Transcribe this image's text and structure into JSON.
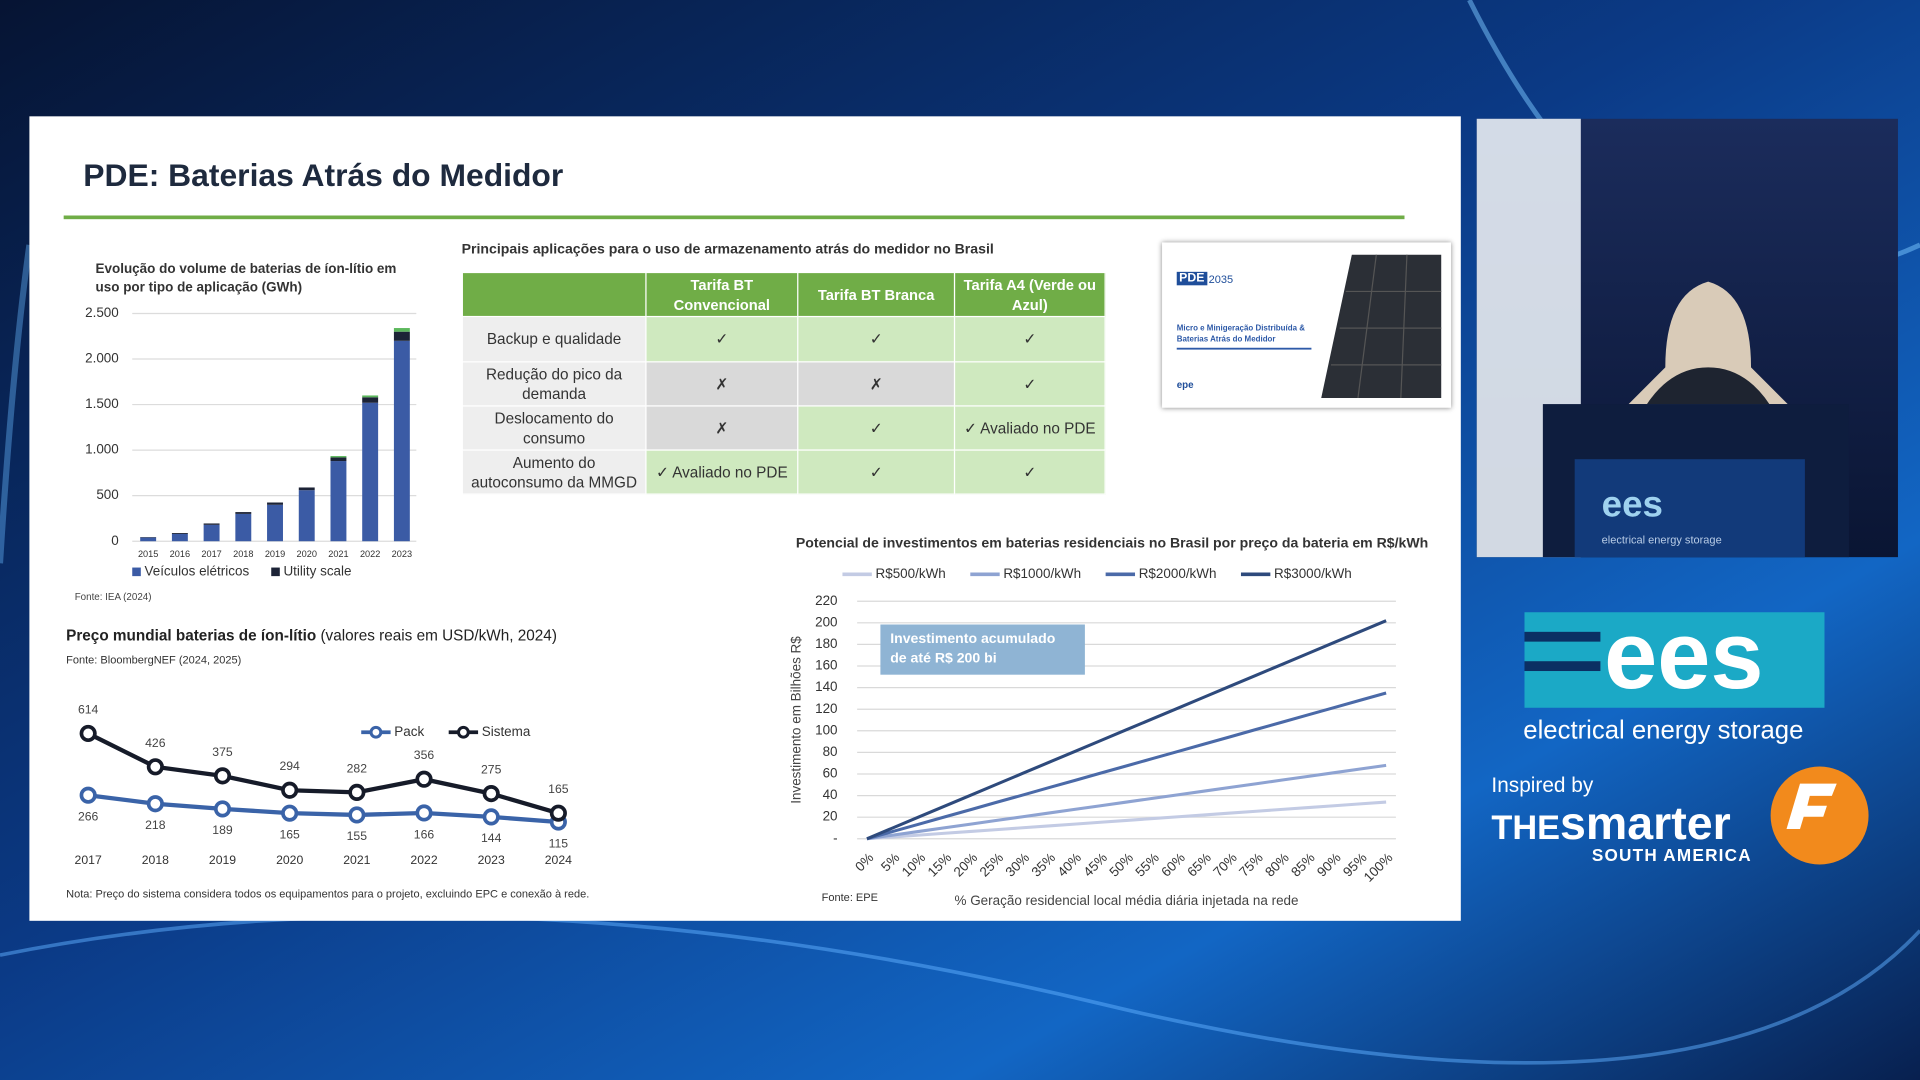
{
  "slide": {
    "title": "PDE: Baterias Atrás do Medidor",
    "note": "Nota: Preço do sistema considera todos os equipamentos para o projeto, excluindo EPC e conexão à rede."
  },
  "table": {
    "title": "Principais aplicações para o uso de armazenamento atrás do medidor no Brasil",
    "header": [
      "Tarifa BT Convencional",
      "Tarifa BT Branca",
      "Tarifa A4 (Verde ou Azul)"
    ],
    "rows": [
      {
        "label": "Backup e qualidade",
        "cells": [
          "✓",
          "✓",
          "✓"
        ]
      },
      {
        "label": "Redução do pico da demanda",
        "cells": [
          "✗",
          "✗",
          "✓"
        ]
      },
      {
        "label": "Deslocamento do consumo",
        "cells": [
          "✗",
          "✓",
          "✓ Avaliado no PDE"
        ]
      },
      {
        "label": "Aumento do autoconsumo da MMGD",
        "cells": [
          "✓ Avaliado no PDE",
          "✓",
          "✓"
        ]
      }
    ]
  },
  "report": {
    "badge": "PDE",
    "year": "2035",
    "title": "Micro e Minigeração Distribuída & Baterias Atrás do Medidor",
    "logo": "epe"
  },
  "branding": {
    "ees": "ees",
    "tagline": "electrical energy storage",
    "inspired": "Inspired by",
    "the": "THE",
    "smarter": "smarter",
    "region": "SOUTH AMERICA"
  },
  "chart_data": [
    {
      "type": "bar",
      "stacked": true,
      "grid": true,
      "legend": "bottom",
      "title": "Evolução do volume de baterias de íon-lítio em uso por tipo de aplicação (GWh)",
      "source": "Fonte: IEA (2024)",
      "categories": [
        "2015",
        "2016",
        "2017",
        "2018",
        "2019",
        "2020",
        "2021",
        "2022",
        "2023"
      ],
      "series": [
        {
          "name": "Veículos elétricos",
          "color": "#3b5ba5",
          "values": [
            40,
            80,
            180,
            300,
            400,
            560,
            880,
            1520,
            2200
          ]
        },
        {
          "name": "Utility scale",
          "color": "#1c2336",
          "values": [
            5,
            10,
            15,
            20,
            25,
            30,
            40,
            60,
            100
          ]
        },
        {
          "color": "#5cb85c",
          "values": [
            0,
            0,
            0,
            0,
            0,
            0,
            15,
            20,
            40
          ]
        }
      ],
      "ylim": [
        0,
        2500
      ],
      "yticks": [
        0,
        500,
        {
          "value": 1000,
          "label": "1.000"
        },
        {
          "value": 1500,
          "label": "1.500"
        },
        {
          "value": 2000,
          "label": "2.000"
        },
        {
          "value": 2500,
          "label": "2.500"
        }
      ]
    },
    {
      "type": "line",
      "markers": true,
      "data_labels": true,
      "legend": "upper right",
      "title": "Preço mundial baterias de íon-lítio",
      "title_note": "(valores reais em USD/kWh, 2024)",
      "subtitle": "Fonte: BloombergNEF (2024, 2025)",
      "categories": [
        "2017",
        "2018",
        "2019",
        "2020",
        "2021",
        "2022",
        "2023",
        "2024"
      ],
      "series": [
        {
          "name": "Pack",
          "color": "#3a63a8",
          "label_position": "below",
          "values": [
            266,
            218,
            189,
            165,
            155,
            166,
            144,
            115
          ]
        },
        {
          "name": "Sistema",
          "color": "#161b29",
          "label_position": "above",
          "values": [
            614,
            426,
            375,
            294,
            282,
            356,
            275,
            165
          ]
        }
      ],
      "ylim": [
        0,
        700
      ]
    },
    {
      "type": "line",
      "grid": true,
      "legend": "top",
      "title": "Potencial de investimentos em baterias residenciais no Brasil por preço da bateria em R$/kWh",
      "y_label": "Investimento em Bilhões R$",
      "x_label": "% Geração residencial local média diária injetada na rede",
      "source": "Fonte: EPE",
      "annotation": "Investimento acumulado de até R$ 200 bi",
      "categories": [
        "0%",
        "5%",
        "10%",
        "15%",
        "20%",
        "25%",
        "30%",
        "35%",
        "40%",
        "45%",
        "50%",
        "55%",
        "60%",
        "65%",
        "70%",
        "75%",
        "80%",
        "85%",
        "90%",
        "95%",
        "100%"
      ],
      "series": [
        {
          "name": "R$500/kWh",
          "color": "#c3cbe4",
          "values": [
            0,
            1.7,
            3.4,
            5.1,
            6.8,
            8.5,
            10.2,
            11.9,
            13.6,
            15.3,
            17,
            18.7,
            20.4,
            22.1,
            23.8,
            25.5,
            27.2,
            28.9,
            30.6,
            32.3,
            34
          ]
        },
        {
          "name": "R$1000/kWh",
          "color": "#8ea3d2",
          "values": [
            0,
            3.4,
            6.8,
            10.2,
            13.6,
            17,
            20.4,
            23.8,
            27.2,
            30.6,
            34,
            37.4,
            40.8,
            44.2,
            47.6,
            51,
            54.4,
            57.8,
            61.2,
            64.6,
            68
          ]
        },
        {
          "name": "R$2000/kWh",
          "color": "#4b6aa8",
          "values": [
            0,
            6.8,
            13.5,
            20.3,
            27,
            33.8,
            40.5,
            47.3,
            54,
            60.8,
            67.5,
            74.3,
            81,
            87.8,
            94.5,
            101.3,
            108,
            114.8,
            121.5,
            128.3,
            135
          ]
        },
        {
          "name": "R$3000/kWh",
          "color": "#2e4a7c",
          "values": [
            0,
            10.1,
            20.2,
            30.3,
            40.4,
            50.5,
            60.6,
            70.7,
            80.8,
            90.9,
            101,
            111.1,
            121.2,
            131.3,
            141.4,
            151.5,
            161.6,
            171.7,
            181.8,
            191.9,
            202
          ]
        }
      ],
      "ylim": [
        0,
        220
      ],
      "yticks": [
        {
          "value": 0,
          "label": "-"
        },
        20,
        40,
        60,
        80,
        100,
        120,
        140,
        160,
        180,
        200,
        220
      ]
    }
  ]
}
